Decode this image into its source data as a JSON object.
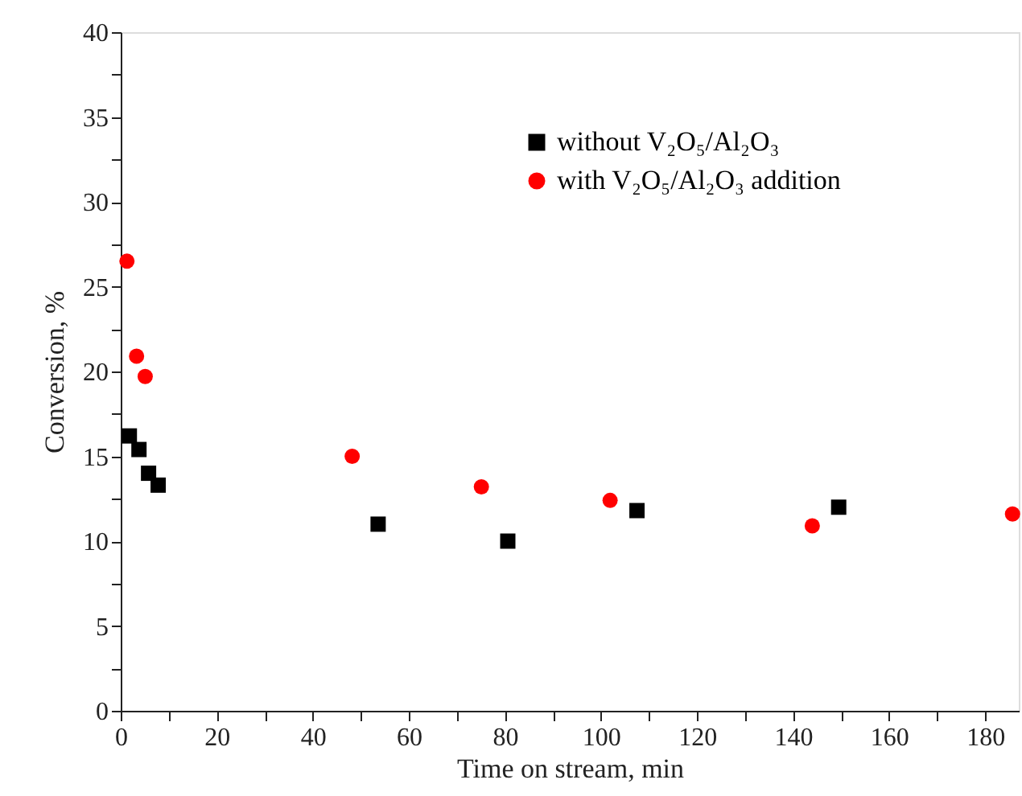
{
  "chart_data": {
    "type": "scatter",
    "xlabel": "Time on stream, min",
    "ylabel": "Conversion, %",
    "xlim": [
      0,
      187
    ],
    "ylim": [
      0,
      40
    ],
    "xticks": [
      0,
      {
        "value": 10,
        "label": null
      },
      20,
      {
        "value": 30,
        "label": null
      },
      40,
      {
        "value": 50,
        "label": null
      },
      60,
      {
        "value": 70,
        "label": null
      },
      80,
      {
        "value": 90,
        "label": null
      },
      100,
      {
        "value": 110,
        "label": null
      },
      120,
      {
        "value": 130,
        "label": null
      },
      140,
      {
        "value": 150,
        "label": null
      },
      160,
      {
        "value": 170,
        "label": null
      },
      180
    ],
    "yticks": [
      0,
      {
        "value": 2.5,
        "label": null
      },
      5,
      {
        "value": 7.5,
        "label": null
      },
      10,
      {
        "value": 12.5,
        "label": null
      },
      15,
      {
        "value": 17.5,
        "label": null
      },
      20,
      {
        "value": 22.5,
        "label": null
      },
      25,
      {
        "value": 27.5,
        "label": null
      },
      30,
      {
        "value": 32.5,
        "label": null
      },
      35,
      {
        "value": 37.5,
        "label": null
      },
      40
    ],
    "grid": false,
    "legend": "top right",
    "series": [
      {
        "name": "without V₂O₅/Al₂O₃",
        "color": "#000000",
        "marker": "square",
        "x": [
          1.8,
          3.8,
          5.8,
          7.8,
          53.6,
          80.6,
          107.5,
          149.5
        ],
        "values": [
          16.2,
          15.4,
          14.0,
          13.3,
          11.0,
          10.0,
          11.8,
          12.0
        ]
      },
      {
        "name": "with V₂O₅/Al₂O₃ addition",
        "color": "#ff0000",
        "marker": "circle",
        "x": [
          1.3,
          3.3,
          5.1,
          48.2,
          75.1,
          101.9,
          144.0,
          185.7
        ],
        "values": [
          26.5,
          20.9,
          19.7,
          15.0,
          13.2,
          12.4,
          10.9,
          11.6
        ]
      }
    ]
  }
}
